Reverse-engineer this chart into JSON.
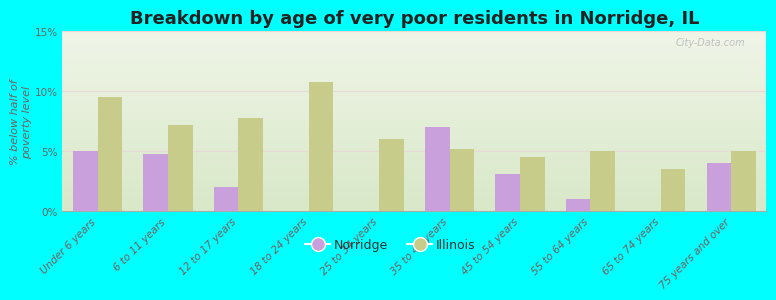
{
  "title": "Breakdown by age of very poor residents in Norridge, IL",
  "ylabel": "% below half of\npoverty level",
  "categories": [
    "Under 6 years",
    "6 to 11 years",
    "12 to 17 years",
    "18 to 24 years",
    "25 to 34 years",
    "35 to 44 years",
    "45 to 54 years",
    "55 to 64 years",
    "65 to 74 years",
    "75 years and over"
  ],
  "norridge_values": [
    5.0,
    4.8,
    2.0,
    0.0,
    0.0,
    7.0,
    3.1,
    1.0,
    0.0,
    4.0
  ],
  "illinois_values": [
    9.5,
    7.2,
    7.8,
    10.8,
    6.0,
    5.2,
    4.5,
    5.0,
    3.5,
    5.0
  ],
  "norridge_color": "#c9a0dc",
  "illinois_color": "#c8cc8a",
  "background_color": "#00ffff",
  "plot_bg_top": "#f0f5e8",
  "plot_bg_bottom": "#d8e8c8",
  "ylim": [
    0,
    15
  ],
  "yticks": [
    0,
    5,
    10,
    15
  ],
  "ytick_labels": [
    "0%",
    "5%",
    "10%",
    "15%"
  ],
  "bar_width": 0.35,
  "title_fontsize": 13,
  "axis_label_fontsize": 8,
  "tick_fontsize": 7.5,
  "legend_labels": [
    "Norridge",
    "Illinois"
  ],
  "watermark": "City-Data.com"
}
